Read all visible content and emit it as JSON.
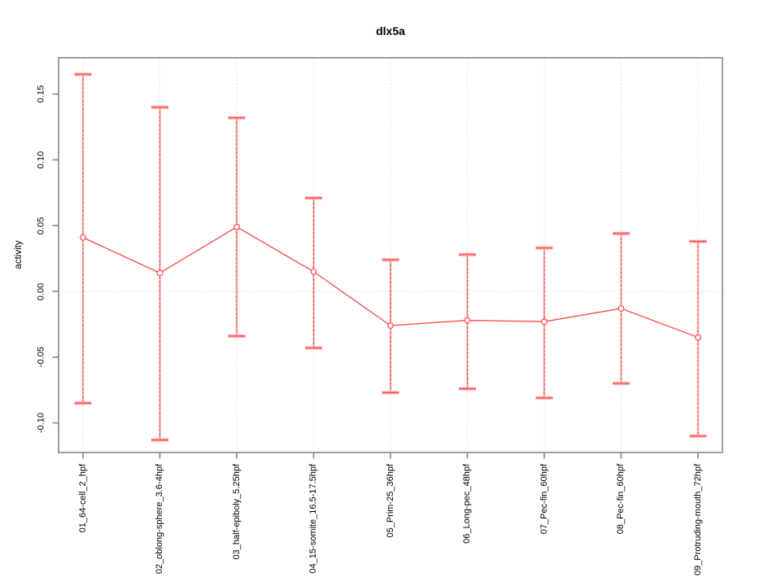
{
  "chart_data": {
    "type": "line",
    "title": "dlx5a",
    "ylabel": "activity",
    "xlabel": "",
    "categories": [
      "01_64-cell_2_hpf",
      "02_oblong-sphere_3.6-4hpf",
      "03_half-epiboly_5.25hpf",
      "04_15-somite_16.5-17.5hpf",
      "05_Prim-25_36hpf",
      "06_Long-pec_48hpf",
      "07_Pec-fin_60hpf",
      "08_Pec-fin_60hpf",
      "09_Protruding-mouth_72hpf"
    ],
    "series": [
      {
        "name": "activity",
        "marker": "open-circle",
        "values": [
          0.041,
          0.014,
          0.049,
          0.015,
          -0.026,
          -0.022,
          -0.023,
          -0.013,
          -0.035
        ],
        "error_low": [
          -0.085,
          -0.113,
          -0.034,
          -0.043,
          -0.077,
          -0.074,
          -0.081,
          -0.07,
          -0.11
        ],
        "error_high": [
          0.165,
          0.14,
          0.132,
          0.071,
          0.024,
          0.028,
          0.033,
          0.044,
          0.038
        ]
      }
    ],
    "yticks": [
      0.15,
      0.1,
      0.05,
      0.0,
      -0.05,
      -0.1
    ],
    "ytick_labels": [
      "0.15",
      "0.10",
      "0.05",
      "0.00",
      "-0.05",
      "-0.10"
    ],
    "ylim": [
      -0.122,
      0.178
    ],
    "grid": {
      "vertical": "dotted at each category",
      "horizontal": "dotted at 0.00"
    },
    "legend_position": "none",
    "colors": {
      "line": "#f94646",
      "band": "#fdafaf",
      "cap": "#fca4a4",
      "grid": "#d8d8d8",
      "frame": "#878787",
      "text": "#000000",
      "background": "#ffffff"
    }
  }
}
